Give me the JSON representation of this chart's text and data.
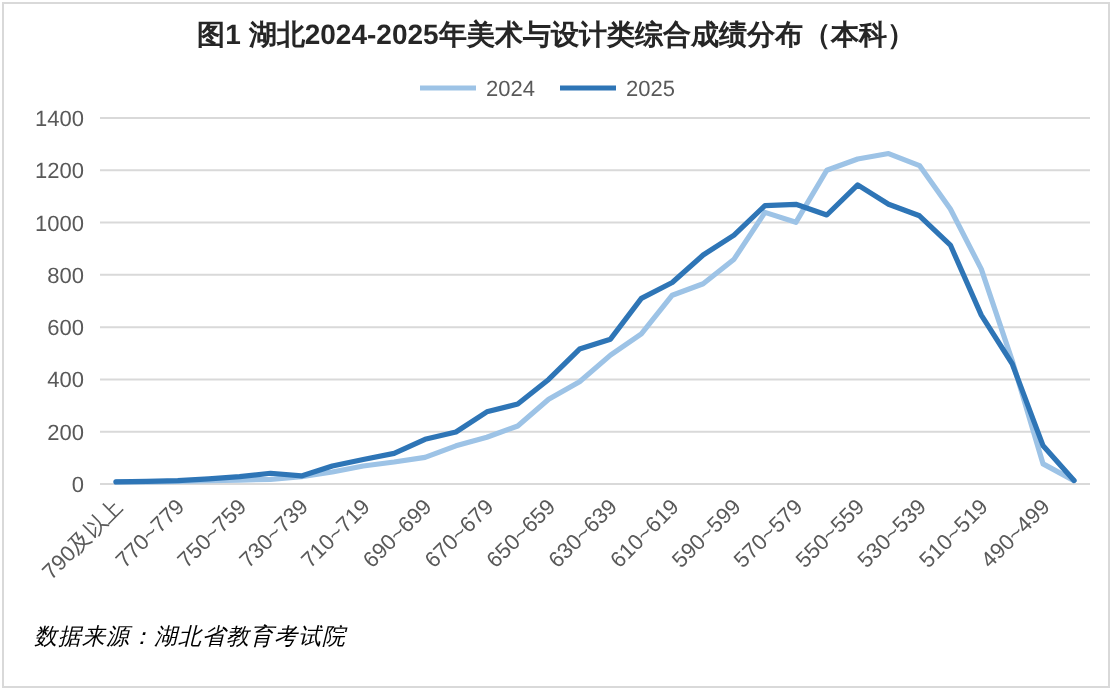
{
  "chart_data": {
    "type": "line",
    "title": "图1 湖北2024-2025年美术与设计类综合成绩分布（本科）",
    "categories": [
      "790及以上",
      null,
      "770~779",
      null,
      "750~759",
      null,
      "730~739",
      null,
      "710~719",
      null,
      "690~699",
      null,
      "670~679",
      null,
      "650~659",
      null,
      "630~639",
      null,
      "610~619",
      null,
      "590~599",
      null,
      "570~579",
      null,
      "550~559",
      null,
      "530~539",
      null,
      "510~519",
      null,
      "490~499",
      null
    ],
    "series": [
      {
        "name": "2024",
        "color": "#9dc3e6",
        "values": [
          8,
          8,
          10,
          13,
          15,
          18,
          28,
          46,
          69,
          84,
          102,
          146,
          179,
          222,
          324,
          391,
          493,
          574,
          722,
          766,
          860,
          1039,
          1001,
          1200,
          1243,
          1264,
          1218,
          1052,
          822,
          472,
          77,
          13
        ]
      },
      {
        "name": "2025",
        "color": "#2e75b6",
        "values": [
          8,
          10,
          13,
          20,
          28,
          41,
          31,
          69,
          94,
          117,
          171,
          199,
          276,
          306,
          400,
          516,
          554,
          710,
          771,
          876,
          952,
          1065,
          1070,
          1029,
          1144,
          1070,
          1026,
          914,
          646,
          460,
          146,
          13
        ]
      }
    ],
    "ylim": [
      0,
      1400
    ],
    "yticks": [
      0,
      200,
      400,
      600,
      800,
      1000,
      1200,
      1400
    ],
    "grid": "y",
    "legend": "top",
    "marker": "none",
    "line_style": "solid",
    "annotations": [
      "数据来源：湖北省教育考试院"
    ]
  }
}
